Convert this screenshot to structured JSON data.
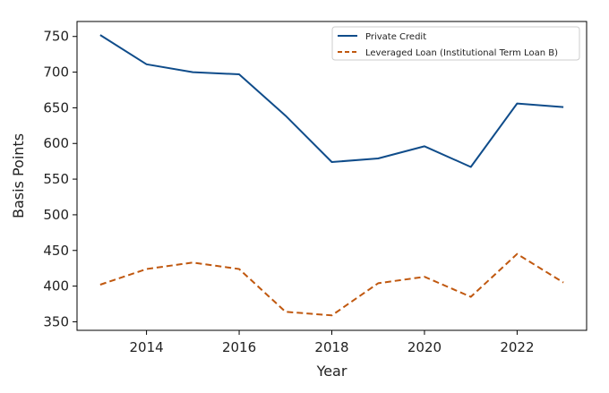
{
  "chart_data": {
    "type": "line",
    "title": "",
    "xlabel": "Year",
    "ylabel": "Basis Points",
    "x": [
      2013,
      2014,
      2015,
      2016,
      2017,
      2018,
      2019,
      2020,
      2021,
      2022,
      2023
    ],
    "xticks": [
      2014,
      2016,
      2018,
      2020,
      2022
    ],
    "yticks": [
      350,
      400,
      450,
      500,
      550,
      600,
      650,
      700,
      750
    ],
    "xlim": [
      2012.5,
      2023.5
    ],
    "ylim": [
      338,
      771
    ],
    "grid": false,
    "legend_position": "top-right",
    "series": [
      {
        "name": "Private Credit",
        "values": [
          752,
          711,
          700,
          697,
          639,
          574,
          579,
          596,
          567,
          656,
          651
        ],
        "color": "#0f4c8a",
        "dash": "solid"
      },
      {
        "name": "Leveraged Loan (Institutional Term Loan B)",
        "values": [
          402,
          424,
          433,
          424,
          364,
          359,
          404,
          413,
          385,
          445,
          405
        ],
        "color": "#c0580f",
        "dash": "dashed"
      }
    ]
  }
}
